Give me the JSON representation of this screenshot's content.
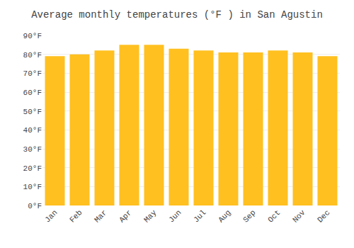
{
  "chart_data": {
    "type": "bar",
    "title": "Average monthly temperatures (°F ) in San Agustin",
    "categories": [
      "Jan",
      "Feb",
      "Mar",
      "Apr",
      "May",
      "Jun",
      "Jul",
      "Aug",
      "Sep",
      "Oct",
      "Nov",
      "Dec"
    ],
    "values": [
      79,
      80,
      82,
      85,
      85,
      83,
      82,
      81,
      81,
      82,
      81,
      79
    ],
    "color": "#FFC020",
    "ylim": [
      0,
      90
    ],
    "yticks": [
      {
        "value": 0,
        "label": "0°F"
      },
      {
        "value": 10,
        "label": "10°F"
      },
      {
        "value": 20,
        "label": "20°F"
      },
      {
        "value": 30,
        "label": "30°F"
      },
      {
        "value": 40,
        "label": "40°F"
      },
      {
        "value": 50,
        "label": "50°F"
      },
      {
        "value": 60,
        "label": "60°F"
      },
      {
        "value": 70,
        "label": "70°F"
      },
      {
        "value": 80,
        "label": "80°F"
      },
      {
        "value": 90,
        "label": "90°F"
      }
    ],
    "grid": true
  }
}
